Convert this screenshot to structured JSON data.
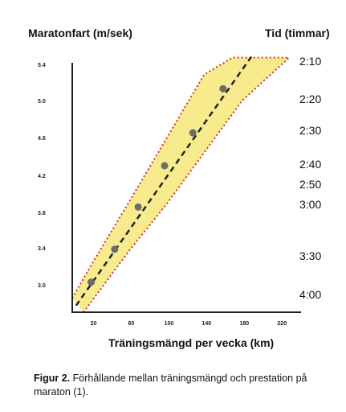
{
  "chart_data": {
    "type": "line",
    "ylabel_left": "Maratonfart (m/sek)",
    "ylabel_right": "Tid (timmar)",
    "xlabel": "Träningsmängd per vecka (km)",
    "x_ticks": [
      "20",
      "60",
      "100",
      "140",
      "180",
      "220"
    ],
    "y_ticks": [
      "3.0",
      "3.4",
      "3.8",
      "4.2",
      "4.6",
      "5.0",
      "5.4"
    ],
    "right_ticks": [
      "2:10",
      "2:20",
      "2:30",
      "2:40",
      "2:50",
      "3:00",
      "3:30",
      "4:00"
    ],
    "xlim": [
      0,
      230
    ],
    "ylim": [
      2.75,
      5.5
    ],
    "series": [
      {
        "type": "scatter",
        "x": [
          20,
          45,
          70,
          98,
          128,
          160
        ],
        "y": [
          3.07,
          3.42,
          3.87,
          4.31,
          4.66,
          5.13
        ]
      }
    ],
    "band": {
      "upper": [
        [
          0,
          2.9
        ],
        [
          20,
          3.25
        ],
        [
          60,
          3.92
        ],
        [
          100,
          4.6
        ],
        [
          140,
          5.28
        ],
        [
          170,
          5.46
        ],
        [
          230,
          5.46
        ]
      ],
      "lower": [
        [
          12,
          2.75
        ],
        [
          60,
          3.4
        ],
        [
          100,
          3.9
        ],
        [
          140,
          4.45
        ],
        [
          180,
          5.0
        ],
        [
          230,
          5.46
        ]
      ]
    }
  },
  "caption": {
    "label": "Figur 2.",
    "text": "Förhållande mellan träningsmängd och prestation på maraton (1)."
  }
}
